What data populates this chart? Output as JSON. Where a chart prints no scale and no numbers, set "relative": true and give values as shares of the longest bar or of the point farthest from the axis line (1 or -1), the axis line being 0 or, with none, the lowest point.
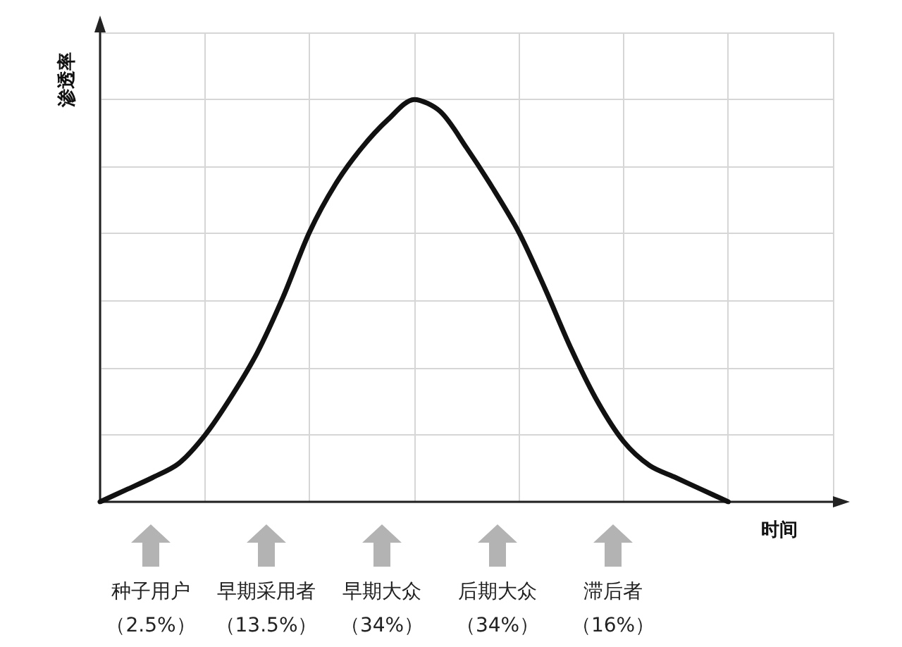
{
  "chart_data": {
    "type": "line",
    "relative": true,
    "xlabel": "时间",
    "ylabel": "渗透率",
    "categories": [
      null,
      null,
      null,
      null,
      null,
      null,
      null,
      null,
      null,
      null,
      null,
      null,
      null,
      null,
      null,
      null,
      null,
      null,
      null,
      null,
      null,
      null,
      null,
      null,
      null,
      null,
      null,
      null,
      null
    ],
    "series": [
      {
        "color": "#111111",
        "values": [
          0,
          0.03,
          0.06,
          0.095,
          0.165,
          0.26,
          0.37,
          0.51,
          0.67,
          0.79,
          0.88,
          0.95,
          1.0,
          0.97,
          0.88,
          0.78,
          0.67,
          0.53,
          0.38,
          0.25,
          0.15,
          0.09,
          0.06,
          0.03,
          0,
          null,
          null,
          null,
          null
        ]
      }
    ],
    "grid": true,
    "marker": "none",
    "line_style": "solid",
    "annotations": [
      "种子用户",
      "（2.5%）",
      "早期采用者",
      "（13.5%）",
      "早期大众",
      "（34%）",
      "后期大众",
      "（34%）",
      "滞后者",
      "（16%）"
    ]
  }
}
